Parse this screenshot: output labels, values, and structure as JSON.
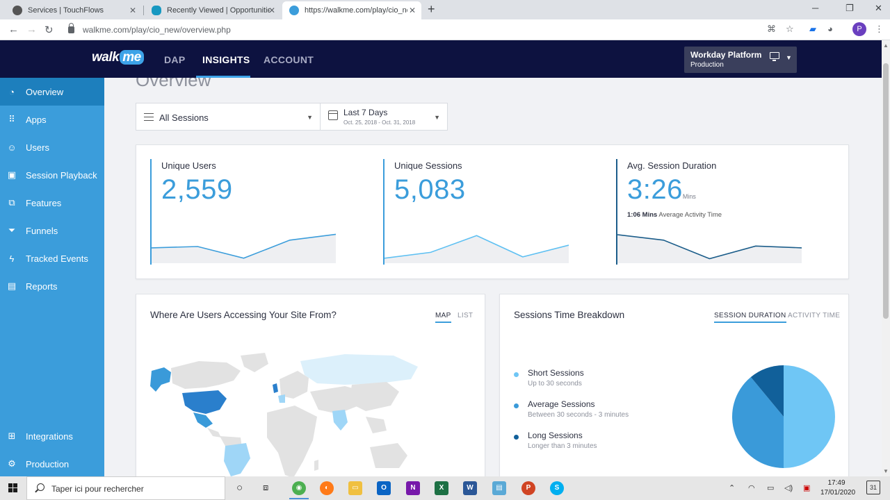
{
  "browser": {
    "tabs": [
      {
        "title": "Services | TouchFlows"
      },
      {
        "title": "Recently Viewed | Opportunities |"
      },
      {
        "title": "https://walkme.com/play/cio_nev"
      }
    ],
    "url": "walkme.com/play/cio_new/overview.php"
  },
  "app": {
    "logo_walk": "walk",
    "logo_me": "me",
    "nav": [
      {
        "label": "DAP"
      },
      {
        "label": "INSIGHTS"
      },
      {
        "label": "ACCOUNT"
      }
    ],
    "platform": {
      "name": "Workday Platform",
      "env": "Production"
    }
  },
  "sidebar": {
    "items": [
      {
        "label": "Overview",
        "icon": "gauge-icon"
      },
      {
        "label": "Apps",
        "icon": "grid-icon"
      },
      {
        "label": "Users",
        "icon": "user-icon"
      },
      {
        "label": "Session Playback",
        "icon": "play-icon"
      },
      {
        "label": "Features",
        "icon": "features-icon"
      },
      {
        "label": "Funnels",
        "icon": "funnel-icon"
      },
      {
        "label": "Tracked Events",
        "icon": "bolt-icon"
      },
      {
        "label": "Reports",
        "icon": "report-icon"
      }
    ],
    "bottom": [
      {
        "label": "Integrations",
        "icon": "integrations-icon"
      },
      {
        "label": "Production",
        "icon": "gear-icon"
      }
    ]
  },
  "main": {
    "title": "Overview",
    "filter_sessions": "All Sessions",
    "filter_date": "Last 7 Days",
    "filter_date_range": "Oct. 25, 2018 - Oct. 31, 2018",
    "stats": [
      {
        "title": "Unique Users",
        "value": "2,559",
        "unit": ""
      },
      {
        "title": "Unique Sessions",
        "value": "5,083",
        "unit": ""
      },
      {
        "title": "Avg. Session Duration",
        "value": "3:26",
        "unit": "Mins",
        "sub_bold": "1:06 Mins",
        "sub": "Average Activity Time"
      }
    ],
    "geo_card": {
      "title": "Where Are Users Accessing Your Site From?",
      "tab_map": "MAP",
      "tab_list": "LIST"
    },
    "sessions_card": {
      "title": "Sessions Time Breakdown",
      "tab_duration": "SESSION DURATION",
      "tab_activity": "ACTIVITY TIME",
      "legend": [
        {
          "name": "Short Sessions",
          "desc": "Up to 30 seconds",
          "color": "#6fc6f5"
        },
        {
          "name": "Average Sessions",
          "desc": "Between 30 seconds - 3 minutes",
          "color": "#3a9ad9"
        },
        {
          "name": "Long Sessions",
          "desc": "Longer than 3 minutes",
          "color": "#11609a"
        }
      ]
    }
  },
  "chart_data": [
    {
      "type": "line",
      "x": [
        1,
        2,
        3,
        4,
        5
      ],
      "series": [
        {
          "values": [
            34,
            37,
            11,
            51,
            64
          ]
        }
      ],
      "ylim": [
        0,
        100
      ]
    },
    {
      "type": "line",
      "x": [
        1,
        2,
        3,
        4,
        5
      ],
      "series": [
        {
          "values": [
            11,
            24,
            61,
            14,
            40
          ]
        }
      ],
      "ylim": [
        0,
        100
      ]
    },
    {
      "type": "line",
      "x": [
        1,
        2,
        3,
        4,
        5
      ],
      "series": [
        {
          "values": [
            63,
            51,
            10,
            38,
            34
          ]
        }
      ],
      "ylim": [
        0,
        100
      ]
    },
    {
      "type": "pie",
      "categories": [
        "Short Sessions",
        "Average Sessions",
        "Long Sessions"
      ],
      "values": [
        50,
        39,
        11
      ]
    }
  ],
  "taskbar": {
    "search_placeholder": "Taper ici pour rechercher",
    "time": "17:49",
    "date": "17/01/2020",
    "notif_count": "31"
  }
}
